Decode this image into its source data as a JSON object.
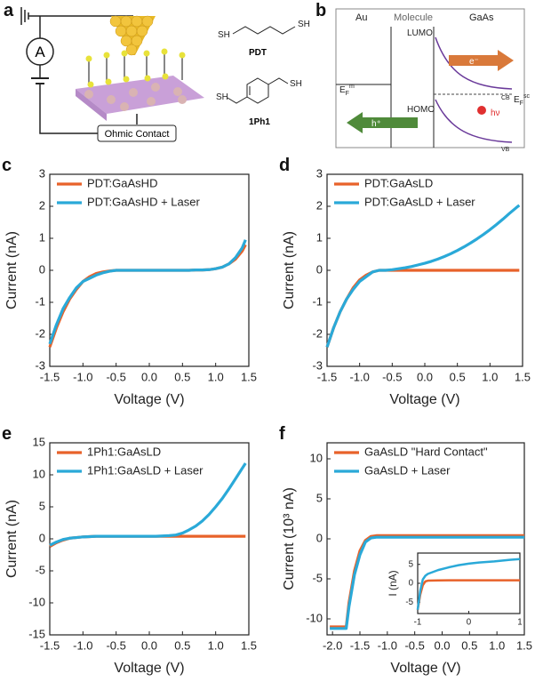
{
  "diagrams": {
    "a": {
      "panel": "a",
      "meter": "A",
      "contact": "Ohmic Contact",
      "mol1": {
        "name": "PDT",
        "left": "SH",
        "right": "SH"
      },
      "mol2": {
        "name": "1Ph1",
        "left": "SH",
        "right": "SH"
      }
    },
    "b": {
      "panel": "b",
      "metal": "Au",
      "middle": "Molecule",
      "semi": "GaAs",
      "lumo": "LUMO",
      "homo": "HOMO",
      "electron": "e⁻",
      "hole": "h⁺",
      "cb": "CB",
      "vb": "VB",
      "photon": "hν",
      "ef_m": {
        "base": "E",
        "sub": "F",
        "sup": "m"
      },
      "ef_sc": {
        "base": "E",
        "sub": "F",
        "sup": "sc"
      }
    }
  },
  "chart_data": [
    {
      "type": "line",
      "panel": "c",
      "xlabel": "Voltage (V)",
      "ylabel": "Current (nA)",
      "xlim": [
        -1.5,
        1.5
      ],
      "xticks": [
        -1.5,
        {
          "value": -1,
          "label": "-1.0"
        },
        -0.5,
        {
          "value": 0,
          "label": "0.0"
        },
        0.5,
        {
          "value": 1,
          "label": "1.0"
        },
        1.5
      ],
      "ylim": [
        -3,
        3
      ],
      "yticks": [
        -3,
        -2,
        -1,
        0,
        1,
        2,
        3
      ],
      "x": [
        -1.5,
        -1.4,
        -1.3,
        -1.2,
        -1.1,
        -1.0,
        -0.9,
        -0.8,
        -0.7,
        -0.6,
        -0.5,
        -0.4,
        -0.3,
        -0.2,
        -0.1,
        0,
        0.1,
        0.2,
        0.3,
        0.4,
        0.5,
        0.6,
        0.7,
        0.8,
        0.9,
        1.0,
        1.1,
        1.2,
        1.3,
        1.4,
        1.45
      ],
      "series": [
        {
          "name": "PDT:GaAsHD",
          "color": "#e8622a",
          "values": [
            -2.4,
            -1.8,
            -1.3,
            -0.9,
            -0.6,
            -0.35,
            -0.2,
            -0.1,
            -0.05,
            -0.02,
            0,
            0,
            0,
            0,
            0,
            0,
            0,
            0,
            0,
            0,
            0,
            0,
            0.01,
            0.01,
            0.02,
            0.05,
            0.1,
            0.2,
            0.35,
            0.6,
            0.8
          ]
        },
        {
          "name": "PDT:GaAsHD + Laser",
          "color": "#2aa9d8",
          "values": [
            -2.3,
            -1.7,
            -1.2,
            -0.85,
            -0.55,
            -0.35,
            -0.25,
            -0.15,
            -0.08,
            -0.03,
            0,
            0,
            0,
            0,
            0,
            0,
            0,
            0,
            0,
            0,
            0,
            0,
            0.01,
            0.01,
            0.02,
            0.05,
            0.1,
            0.2,
            0.4,
            0.7,
            0.95
          ]
        }
      ]
    },
    {
      "type": "line",
      "panel": "d",
      "xlabel": "Voltage (V)",
      "ylabel": "Current (nA)",
      "xlim": [
        -1.5,
        1.5
      ],
      "xticks": [
        -1.5,
        {
          "value": -1,
          "label": "-1.0"
        },
        -0.5,
        {
          "value": 0,
          "label": "0.0"
        },
        0.5,
        {
          "value": 1,
          "label": "1.0"
        },
        1.5
      ],
      "ylim": [
        -3,
        3
      ],
      "yticks": [
        -3,
        -2,
        -1,
        0,
        1,
        2,
        3
      ],
      "x": [
        -1.5,
        -1.4,
        -1.3,
        -1.2,
        -1.1,
        -1.0,
        -0.9,
        -0.8,
        -0.7,
        -0.6,
        -0.5,
        -0.4,
        -0.3,
        -0.2,
        -0.1,
        0,
        0.1,
        0.2,
        0.3,
        0.4,
        0.5,
        0.6,
        0.7,
        0.8,
        0.9,
        1.0,
        1.1,
        1.2,
        1.3,
        1.4,
        1.45
      ],
      "series": [
        {
          "name": "PDT:GaAsLD",
          "color": "#e8622a",
          "values": [
            -2.4,
            -1.8,
            -1.3,
            -0.9,
            -0.55,
            -0.3,
            -0.15,
            -0.05,
            0,
            0,
            0,
            0,
            0,
            0,
            0,
            0,
            0,
            0,
            0,
            0,
            0,
            0,
            0,
            0,
            0,
            0,
            0,
            0,
            0,
            0,
            0
          ]
        },
        {
          "name": "PDT:GaAsLD + Laser",
          "color": "#2aa9d8",
          "values": [
            -2.4,
            -1.8,
            -1.3,
            -0.9,
            -0.6,
            -0.35,
            -0.2,
            -0.05,
            0,
            0,
            0.02,
            0.05,
            0.08,
            0.12,
            0.17,
            0.22,
            0.28,
            0.35,
            0.43,
            0.52,
            0.62,
            0.73,
            0.85,
            0.98,
            1.12,
            1.27,
            1.43,
            1.6,
            1.78,
            1.95,
            2.03
          ]
        }
      ]
    },
    {
      "type": "line",
      "panel": "e",
      "xlabel": "Voltage (V)",
      "ylabel": "Current (nA)",
      "xlim": [
        -1.5,
        1.5
      ],
      "xticks": [
        -1.5,
        {
          "value": -1,
          "label": "-1.0"
        },
        -0.5,
        {
          "value": 0,
          "label": "0.0"
        },
        0.5,
        {
          "value": 1,
          "label": "1.0"
        },
        1.5
      ],
      "ylim": [
        -15,
        15
      ],
      "yticks": [
        -15,
        -10,
        -5,
        0,
        5,
        10,
        15
      ],
      "x": [
        -1.5,
        -1.4,
        -1.3,
        -1.2,
        -1.1,
        -1.0,
        -0.9,
        -0.8,
        -0.7,
        -0.6,
        -0.5,
        -0.4,
        -0.3,
        -0.2,
        -0.1,
        0,
        0.1,
        0.2,
        0.3,
        0.4,
        0.5,
        0.6,
        0.7,
        0.8,
        0.9,
        1.0,
        1.1,
        1.2,
        1.3,
        1.4,
        1.45
      ],
      "series": [
        {
          "name": "1Ph1:GaAsLD",
          "color": "#e8622a",
          "values": [
            -1.2,
            -0.6,
            -0.2,
            0.1,
            0.2,
            0.3,
            0.35,
            0.4,
            0.4,
            0.4,
            0.4,
            0.4,
            0.4,
            0.4,
            0.4,
            0.4,
            0.4,
            0.4,
            0.4,
            0.4,
            0.4,
            0.4,
            0.4,
            0.4,
            0.4,
            0.4,
            0.4,
            0.4,
            0.4,
            0.4,
            0.4
          ]
        },
        {
          "name": "1Ph1:GaAsLD + Laser",
          "color": "#2aa9d8",
          "values": [
            -1.0,
            -0.5,
            -0.1,
            0.1,
            0.2,
            0.3,
            0.35,
            0.4,
            0.4,
            0.4,
            0.4,
            0.4,
            0.4,
            0.4,
            0.4,
            0.4,
            0.4,
            0.45,
            0.5,
            0.6,
            0.9,
            1.4,
            2.0,
            2.8,
            3.8,
            5.0,
            6.3,
            7.8,
            9.4,
            11.0,
            11.8
          ]
        }
      ]
    },
    {
      "type": "line",
      "panel": "f",
      "xlabel": "Voltage (V)",
      "ylabel": "Current (10³ nA)",
      "xlim": [
        -2.1,
        1.5
      ],
      "xticks": [
        {
          "value": -2,
          "label": "-2.0"
        },
        -1.5,
        {
          "value": -1,
          "label": "-1.0"
        },
        -0.5,
        {
          "value": 0,
          "label": "0.0"
        },
        0.5,
        {
          "value": 1,
          "label": "1.0"
        },
        1.5
      ],
      "ylim": [
        -12,
        12
      ],
      "yticks": [
        -10,
        -5,
        0,
        5,
        10
      ],
      "x": [
        -2.05,
        -1.9,
        -1.75,
        -1.7,
        -1.65,
        -1.6,
        -1.5,
        -1.4,
        -1.3,
        -1.2,
        -1.0,
        -0.5,
        0,
        0.5,
        1.0,
        1.5
      ],
      "series": [
        {
          "name": "GaAsLD \"Hard Contact\"",
          "color": "#e8622a",
          "values": [
            -11,
            -11,
            -11,
            -8,
            -6,
            -4,
            -1.5,
            -0.2,
            0.3,
            0.4,
            0.4,
            0.4,
            0.4,
            0.4,
            0.4,
            0.4
          ]
        },
        {
          "name": "GaAsLD + Laser",
          "color": "#2aa9d8",
          "values": [
            -11.2,
            -11.2,
            -11.2,
            -8.5,
            -6.5,
            -4.5,
            -2,
            -0.4,
            0.1,
            0.2,
            0.2,
            0.2,
            0.2,
            0.2,
            0.2,
            0.2
          ]
        }
      ]
    },
    {
      "type": "line",
      "inset": true,
      "ylabel": "I (nA)",
      "xlim": [
        -1,
        1
      ],
      "xticks": [
        -1,
        0,
        1
      ],
      "ylim": [
        -8,
        8
      ],
      "yticks": [
        -5,
        0,
        5
      ],
      "x": [
        -1.0,
        -0.95,
        -0.9,
        -0.85,
        -0.8,
        -0.6,
        -0.4,
        -0.2,
        0,
        0.2,
        0.5,
        0.8,
        1.0
      ],
      "series": [
        {
          "color": "#e8622a",
          "values": [
            -7,
            -3,
            -0.5,
            0.5,
            0.7,
            0.75,
            0.8,
            0.8,
            0.8,
            0.8,
            0.8,
            0.8,
            0.8
          ]
        },
        {
          "color": "#2aa9d8",
          "values": [
            -7,
            -2,
            1,
            2,
            2.5,
            3.5,
            4.2,
            4.8,
            5.2,
            5.5,
            5.8,
            6.2,
            6.4
          ]
        }
      ]
    }
  ]
}
